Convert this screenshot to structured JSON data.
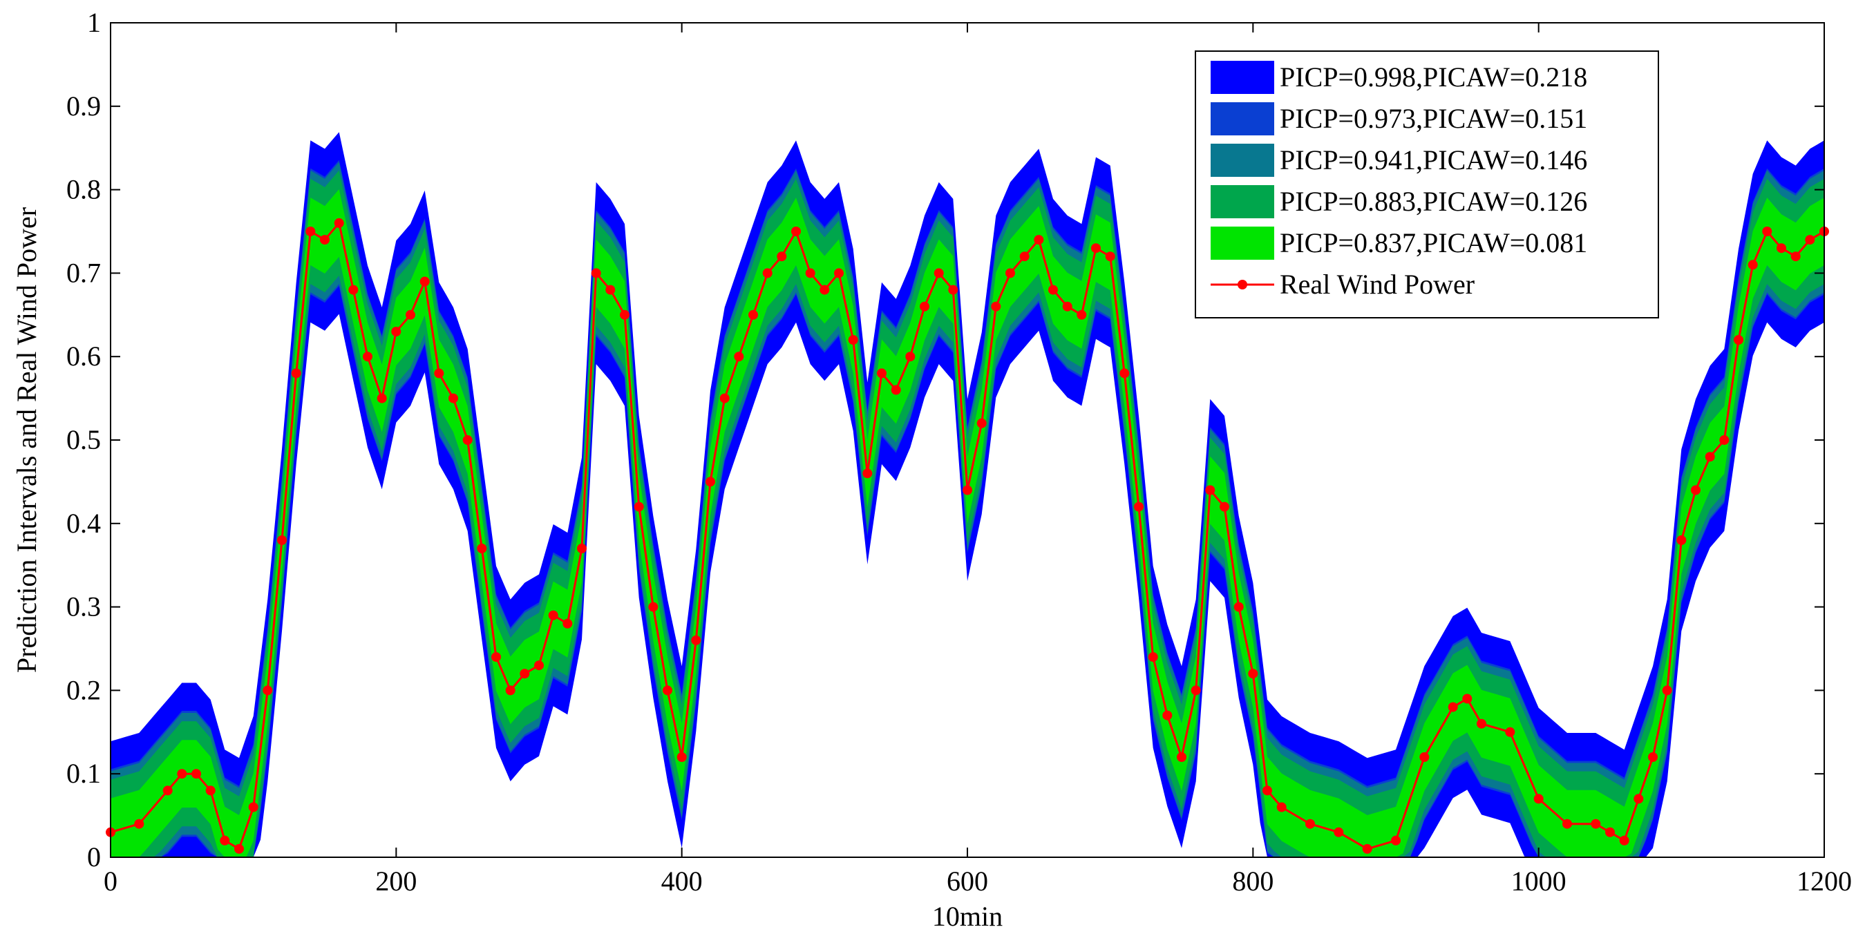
{
  "chart_data": {
    "type": "area",
    "title": "",
    "xlabel": "10min",
    "ylabel": "Prediction Intervals and Real Wind Power",
    "xlim": [
      0,
      1200
    ],
    "ylim": [
      0,
      1
    ],
    "xticks": [
      0,
      200,
      400,
      600,
      800,
      1000,
      1200
    ],
    "xtick_labels": [
      "0",
      "200",
      "400",
      "600",
      "800",
      "1000",
      "1200"
    ],
    "yticks": [
      0,
      0.1,
      0.2,
      0.3,
      0.4,
      0.5,
      0.6,
      0.7,
      0.8,
      0.9,
      1
    ],
    "ytick_labels": [
      "0",
      "0.1",
      "0.2",
      "0.3",
      "0.4",
      "0.5",
      "0.6",
      "0.7",
      "0.8",
      "0.9",
      "1"
    ],
    "grid": false,
    "legend_position": "top-right",
    "real_series": {
      "name": "Real Wind Power",
      "color": "#ff0000",
      "marker": "dot",
      "x": [
        0,
        20,
        40,
        50,
        60,
        70,
        80,
        90,
        100,
        110,
        120,
        130,
        140,
        150,
        160,
        170,
        180,
        190,
        200,
        210,
        220,
        230,
        240,
        250,
        260,
        270,
        280,
        290,
        300,
        310,
        320,
        330,
        340,
        350,
        360,
        370,
        380,
        390,
        400,
        410,
        420,
        430,
        440,
        450,
        460,
        470,
        480,
        490,
        500,
        510,
        520,
        530,
        540,
        550,
        560,
        570,
        580,
        590,
        600,
        610,
        620,
        630,
        640,
        650,
        660,
        670,
        680,
        690,
        700,
        710,
        720,
        730,
        740,
        750,
        760,
        770,
        780,
        790,
        800,
        810,
        820,
        840,
        860,
        880,
        900,
        920,
        940,
        950,
        960,
        980,
        1000,
        1020,
        1040,
        1050,
        1060,
        1070,
        1080,
        1090,
        1100,
        1110,
        1120,
        1130,
        1140,
        1150,
        1160,
        1170,
        1180,
        1190,
        1200
      ],
      "values": [
        0.03,
        0.04,
        0.08,
        0.1,
        0.1,
        0.08,
        0.02,
        0.01,
        0.06,
        0.2,
        0.38,
        0.58,
        0.75,
        0.74,
        0.76,
        0.68,
        0.6,
        0.55,
        0.63,
        0.65,
        0.69,
        0.58,
        0.55,
        0.5,
        0.37,
        0.24,
        0.2,
        0.22,
        0.23,
        0.29,
        0.28,
        0.37,
        0.7,
        0.68,
        0.65,
        0.42,
        0.3,
        0.2,
        0.12,
        0.26,
        0.45,
        0.55,
        0.6,
        0.65,
        0.7,
        0.72,
        0.75,
        0.7,
        0.68,
        0.7,
        0.62,
        0.46,
        0.58,
        0.56,
        0.6,
        0.66,
        0.7,
        0.68,
        0.44,
        0.52,
        0.66,
        0.7,
        0.72,
        0.74,
        0.68,
        0.66,
        0.65,
        0.73,
        0.72,
        0.58,
        0.42,
        0.24,
        0.17,
        0.12,
        0.2,
        0.44,
        0.42,
        0.3,
        0.22,
        0.08,
        0.06,
        0.04,
        0.03,
        0.01,
        0.02,
        0.12,
        0.18,
        0.19,
        0.16,
        0.15,
        0.07,
        0.04,
        0.04,
        0.03,
        0.02,
        0.07,
        0.12,
        0.2,
        0.38,
        0.44,
        0.48,
        0.5,
        0.62,
        0.71,
        0.75,
        0.73,
        0.72,
        0.74,
        0.75
      ]
    },
    "series": [
      {
        "name": "PICP=0.998,PICAW=0.218",
        "color": "#0000ff",
        "half_width": 0.109
      },
      {
        "name": "PICP=0.973,PICAW=0.151",
        "color": "#0a3fd2",
        "half_width": 0.0755
      },
      {
        "name": "PICP=0.941,PICAW=0.146",
        "color": "#087890",
        "half_width": 0.073
      },
      {
        "name": "PICP=0.883,PICAW=0.126",
        "color": "#00a64c",
        "half_width": 0.063
      },
      {
        "name": "PICP=0.837,PICAW=0.081",
        "color": "#00e400",
        "half_width": 0.0405
      }
    ],
    "legend": [
      {
        "label": "PICP=0.998,PICAW=0.218",
        "color": "#0000ff"
      },
      {
        "label": "PICP=0.973,PICAW=0.151",
        "color": "#0a3fd2"
      },
      {
        "label": "PICP=0.941,PICAW=0.146",
        "color": "#087890"
      },
      {
        "label": "PICP=0.883,PICAW=0.126",
        "color": "#00a64c"
      },
      {
        "label": "PICP=0.837,PICAW=0.081",
        "color": "#00e400"
      },
      {
        "label": "Real Wind Power",
        "color": "#ff0000"
      }
    ]
  }
}
